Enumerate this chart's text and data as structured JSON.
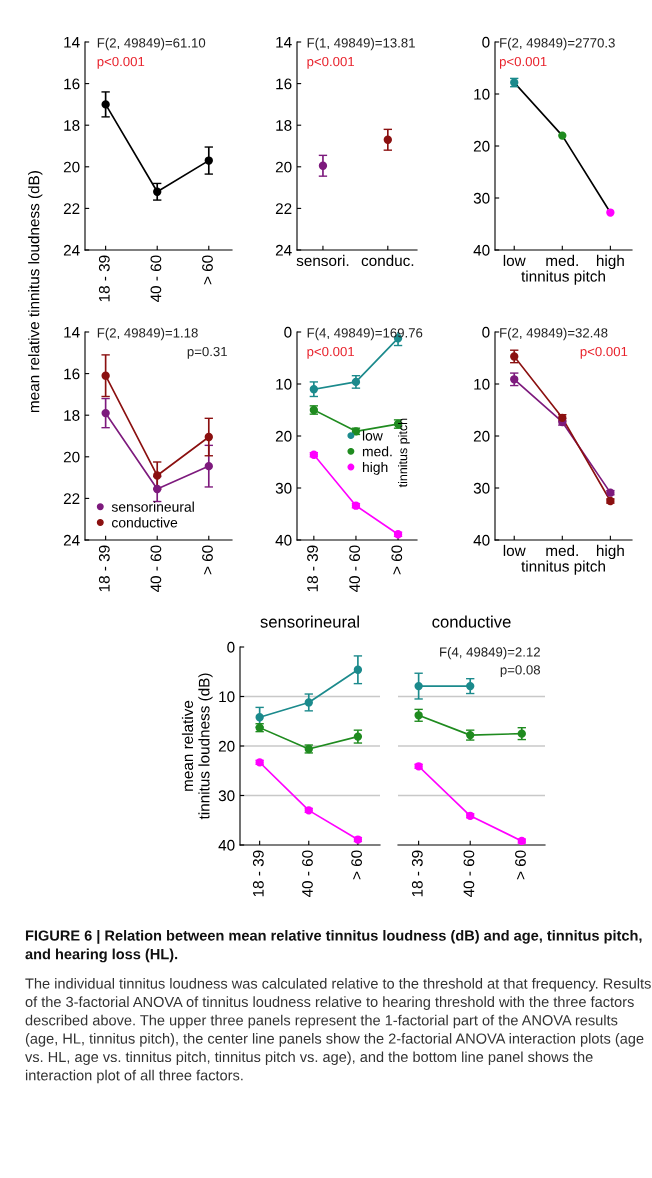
{
  "chart_data": [
    {
      "type": "line",
      "ylabel": "mean relative tinnitus loudness (dB)",
      "categories": [
        "18 - 39",
        "40 - 60",
        "> 60"
      ],
      "ylim": [
        24,
        14
      ],
      "yticks": [
        14,
        16,
        18,
        20,
        22,
        24
      ],
      "marker": "circle",
      "annotations": [
        "F(2, 49849)=61.10",
        "p<0.001"
      ],
      "series": [
        {
          "color": "#000000",
          "values": [
            17.0,
            21.2,
            19.7
          ],
          "errors": [
            0.6,
            0.4,
            0.65
          ]
        }
      ]
    },
    {
      "type": "scatter",
      "categories": [
        "sensori.",
        "conduc."
      ],
      "ylim": [
        24,
        14
      ],
      "yticks": [
        14,
        16,
        18,
        20,
        22,
        24
      ],
      "marker": "circle",
      "annotations": [
        "F(1, 49849)=13.81",
        "p<0.001"
      ],
      "series": [
        {
          "colors": [
            "#7d1a7d",
            "#8b1010"
          ],
          "values": [
            19.95,
            18.7
          ],
          "errors": [
            0.5,
            0.5
          ]
        }
      ]
    },
    {
      "type": "line",
      "xlabel": "tinnitus pitch",
      "categories": [
        "low",
        "med.",
        "high"
      ],
      "ylim": [
        40,
        0
      ],
      "yticks": [
        0,
        10,
        20,
        30,
        40
      ],
      "marker": "circle",
      "annotations": [
        "F(2, 49849)=2770.3",
        "p<0.001"
      ],
      "series": [
        {
          "color": "#000000",
          "colors": [
            "#1b8a8c",
            "#1f8b1f",
            "#ff00ff"
          ],
          "values": [
            7.8,
            18.0,
            32.8
          ],
          "errors": [
            0.8,
            null,
            null
          ]
        }
      ]
    },
    {
      "type": "line",
      "categories": [
        "18 - 39",
        "40 - 60",
        "> 60"
      ],
      "ylim": [
        24,
        14
      ],
      "yticks": [
        14,
        16,
        18,
        20,
        22,
        24
      ],
      "marker": "circle",
      "legend": "bottom left",
      "annotations": [
        "F(2, 49849)=1.18",
        "p=0.31"
      ],
      "series": [
        {
          "name": "sensorineural",
          "color": "#7d1a7d",
          "values": [
            17.9,
            21.55,
            20.45
          ],
          "errors": [
            0.7,
            0.6,
            1.0
          ]
        },
        {
          "name": "conductive",
          "color": "#8b1010",
          "values": [
            16.1,
            20.9,
            19.05
          ],
          "errors": [
            1.0,
            0.65,
            0.9
          ]
        }
      ]
    },
    {
      "type": "line",
      "categories": [
        "18 - 39",
        "40 - 60",
        "> 60"
      ],
      "ylim": [
        40,
        0
      ],
      "yticks": [
        0,
        10,
        20,
        30,
        40
      ],
      "marker": "circle",
      "legend": "right",
      "legend_title": "tinnitus pitch",
      "annotations": [
        "F(4, 49849)=169.76",
        "p<0.001"
      ],
      "series": [
        {
          "name": "low",
          "color": "#1b8a8c",
          "values": [
            11.0,
            9.6,
            1.2
          ],
          "errors": [
            1.4,
            1.2,
            1.4
          ]
        },
        {
          "name": "med.",
          "color": "#1f8b1f",
          "values": [
            15.0,
            19.1,
            17.7
          ],
          "errors": [
            0.8,
            0.6,
            0.8
          ]
        },
        {
          "name": "high",
          "color": "#ff00ff",
          "values": [
            23.6,
            33.4,
            38.9
          ],
          "errors": [
            0.4,
            0.4,
            0.4
          ]
        }
      ]
    },
    {
      "type": "line",
      "xlabel": "tinnitus pitch",
      "categories": [
        "low",
        "med.",
        "high"
      ],
      "ylim": [
        40,
        0
      ],
      "yticks": [
        0,
        10,
        20,
        30,
        40
      ],
      "marker": "circle",
      "annotations": [
        "F(2, 49849)=32.48",
        "p<0.001"
      ],
      "series": [
        {
          "color": "#7d1a7d",
          "values": [
            9.1,
            17.3,
            30.9
          ],
          "errors": [
            1.2,
            0.6,
            0.4
          ]
        },
        {
          "color": "#8b1010",
          "values": [
            4.7,
            16.5,
            32.5
          ],
          "errors": [
            1.2,
            0.6,
            0.4
          ]
        }
      ]
    },
    {
      "type": "line",
      "title": "sensorineural",
      "ylabel": "mean relative\ntinnitus loudness (dB)",
      "categories": [
        "18 - 39",
        "40 - 60",
        "> 60"
      ],
      "ylim": [
        40,
        0
      ],
      "yticks": [
        0,
        10,
        20,
        30,
        40
      ],
      "marker": "circle",
      "grid": "y",
      "series": [
        {
          "color": "#1b8a8c",
          "values": [
            14.2,
            11.2,
            4.6
          ],
          "errors": [
            2.0,
            1.7,
            2.8
          ]
        },
        {
          "color": "#1f8b1f",
          "values": [
            16.3,
            20.6,
            18.1
          ],
          "errors": [
            0.8,
            0.8,
            1.3
          ]
        },
        {
          "color": "#ff00ff",
          "values": [
            23.3,
            33.0,
            38.9
          ],
          "errors": [
            0.4,
            0.4,
            0.4
          ]
        }
      ]
    },
    {
      "type": "line",
      "title": "conductive",
      "categories": [
        "18 - 39",
        "40 - 60",
        "> 60"
      ],
      "ylim": [
        40,
        0
      ],
      "marker": "circle",
      "grid": "y",
      "tick_labels": "x",
      "annotations": [
        "F(4, 49849)=2.12",
        "p=0.08",
        "FIGURE 6 | Relation between mean relative tinnitus loudness (dB) and age, tinnitus pitch, and hearing loss (HL).",
        "The individual tinnitus loudness was calculated relative to the threshold at that frequency. Results of the 3-factorial ANOVA of tinnitus loudness relative to hearing threshold with the three factors described above. The upper three panels represent the 1-factorial part of the ANOVA results (age, HL, tinnitus pitch), the center line panels show the 2-factorial ANOVA interaction plots (age vs. HL, age vs. tinnitus pitch, tinnitus pitch vs. age), and the bottom line panel shows the interaction plot of all three factors."
      ],
      "series": [
        {
          "color": "#1b8a8c",
          "values": [
            7.9,
            7.9,
            null
          ],
          "errors": [
            2.6,
            1.5,
            null
          ]
        },
        {
          "color": "#1f8b1f",
          "values": [
            13.8,
            17.8,
            17.5
          ],
          "errors": [
            1.2,
            1.0,
            1.2
          ]
        },
        {
          "color": "#ff00ff",
          "values": [
            24.1,
            34.1,
            39.2
          ],
          "errors": [
            0.4,
            0.4,
            0.4
          ]
        }
      ]
    }
  ]
}
